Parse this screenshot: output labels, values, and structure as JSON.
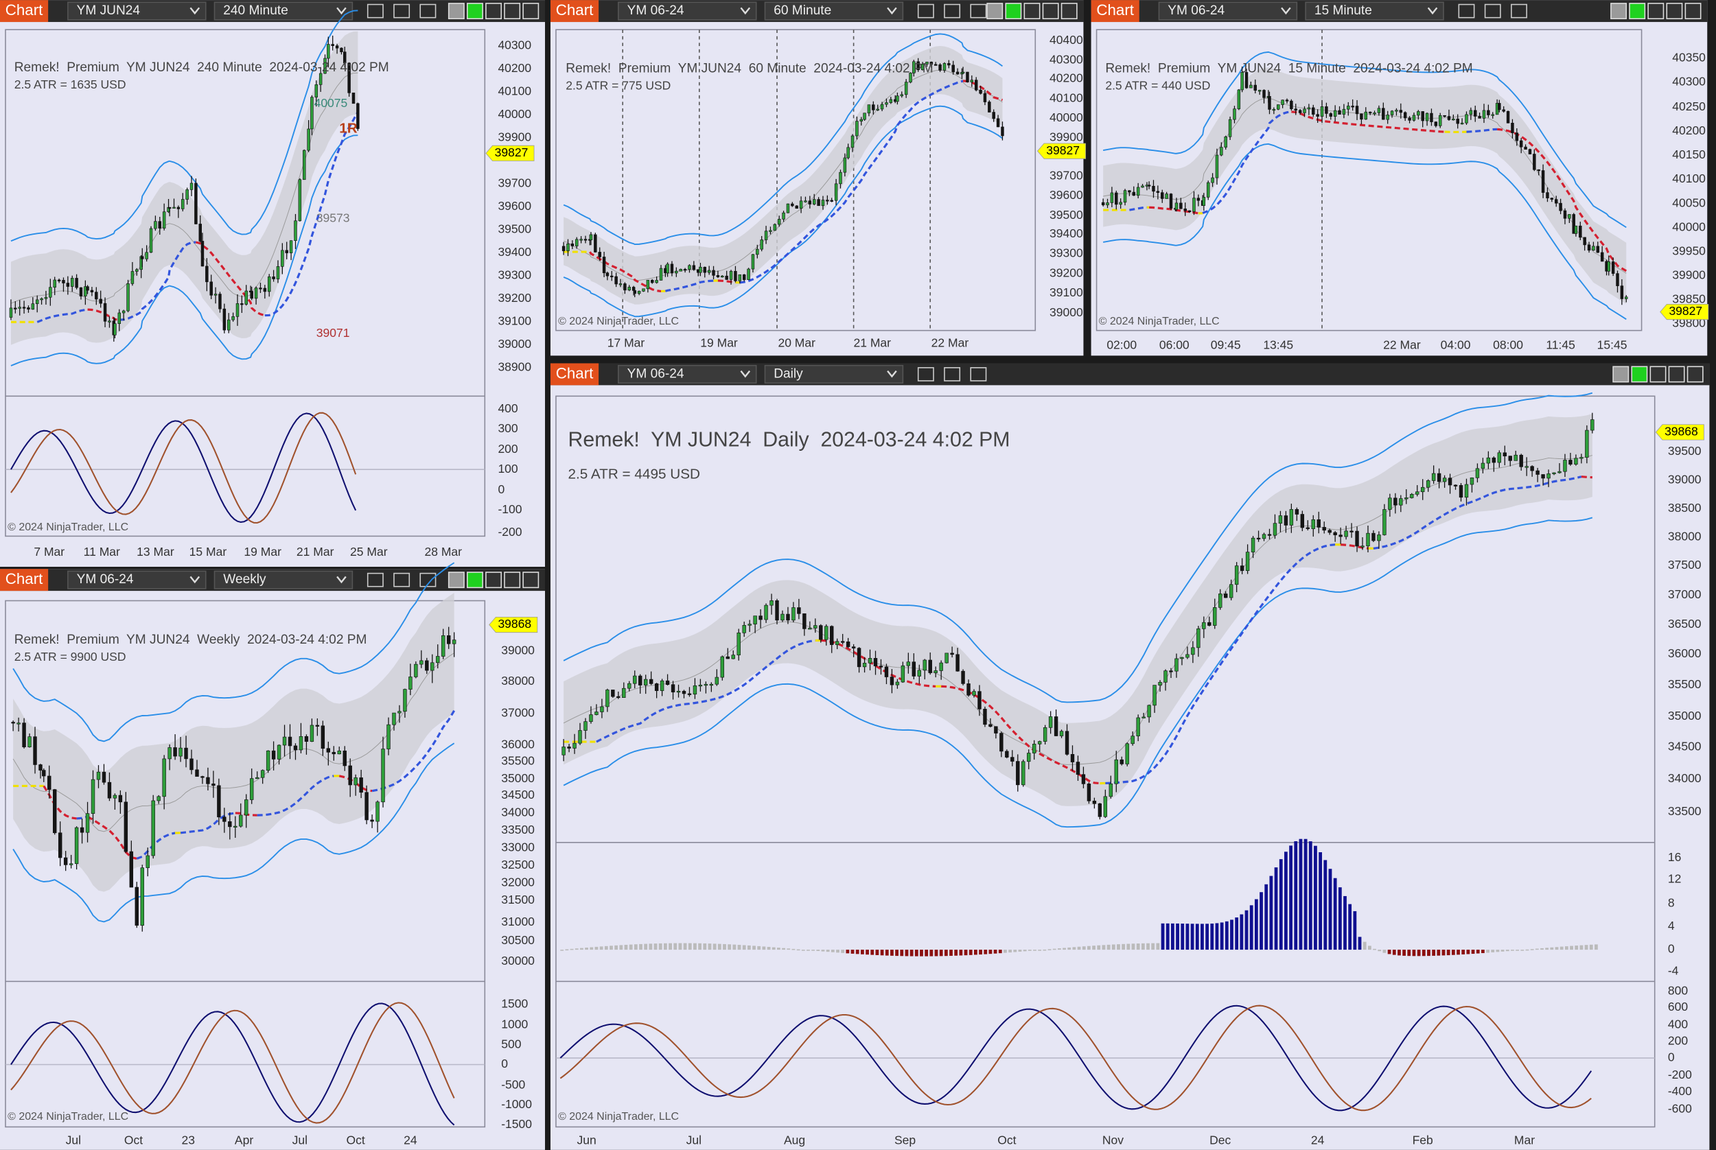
{
  "windows": [
    {
      "tab": "Chart",
      "instrument": "YM JUN24",
      "interval": "240 Minute",
      "title": "Remek!  Premium  YM JUN24  240 Minute  2024-03-24 4:02 PM",
      "atr": "2.5 ATR = 1635 USD",
      "copyright": "© 2024 NinjaTrader, LLC",
      "last_price": "39827",
      "price_axis": [
        "40300",
        "40200",
        "40100",
        "40000",
        "39900",
        "39700",
        "39600",
        "39500",
        "39400",
        "39300",
        "39200",
        "39100",
        "39000",
        "38900"
      ],
      "osc_axis": [
        "400",
        "300",
        "200",
        "100",
        "0",
        "-100",
        "-200"
      ],
      "date_axis": [
        "7 Mar",
        "11 Mar",
        "13 Mar",
        "15 Mar",
        "19 Mar",
        "21 Mar",
        "25 Mar",
        "28 Mar"
      ],
      "annotations": [
        "40075",
        "1R",
        "39573",
        "39071"
      ]
    },
    {
      "tab": "Chart",
      "instrument": "YM 06-24",
      "interval": "60 Minute",
      "title": "Remek!  Premium  YM JUN24  60 Minute  2024-03-24 4:02 PM",
      "atr": "2.5 ATR = 775 USD",
      "copyright": "© 2024 NinjaTrader, LLC",
      "last_price": "39827",
      "price_axis": [
        "40400",
        "40300",
        "40200",
        "40100",
        "40000",
        "39900",
        "39700",
        "39600",
        "39500",
        "39400",
        "39300",
        "39200",
        "39100",
        "39000"
      ],
      "date_axis": [
        "17 Mar",
        "19 Mar",
        "20 Mar",
        "21 Mar",
        "22 Mar"
      ]
    },
    {
      "tab": "Chart",
      "instrument": "YM 06-24",
      "interval": "15 Minute",
      "title": "Remek!  Premium  YM JUN24  15 Minute  2024-03-24 4:02 PM",
      "atr": "2.5 ATR = 440 USD",
      "copyright": "© 2024 NinjaTrader, LLC",
      "last_price": "39827",
      "price_axis": [
        "40350",
        "40300",
        "40250",
        "40200",
        "40150",
        "40100",
        "40050",
        "40000",
        "39950",
        "39900",
        "39850",
        "39800"
      ],
      "date_axis": [
        "02:00",
        "06:00",
        "09:45",
        "13:45",
        "22 Mar",
        "04:00",
        "08:00",
        "11:45",
        "15:45"
      ]
    },
    {
      "tab": "Chart",
      "instrument": "YM 06-24",
      "interval": "Weekly",
      "title": "Remek!  Premium  YM JUN24  Weekly  2024-03-24 4:02 PM",
      "atr": "2.5 ATR = 9900 USD",
      "copyright": "© 2024 NinjaTrader, LLC",
      "last_price": "39868",
      "price_axis": [
        "39000",
        "38000",
        "37000",
        "36000",
        "35500",
        "35000",
        "34500",
        "34000",
        "33500",
        "33000",
        "32500",
        "32000",
        "31500",
        "31000",
        "30500",
        "30000"
      ],
      "osc_axis": [
        "1500",
        "1000",
        "500",
        "0",
        "-500",
        "-1000",
        "-1500"
      ],
      "date_axis": [
        "Jul",
        "Oct",
        "23",
        "Apr",
        "Jul",
        "Oct",
        "24"
      ]
    },
    {
      "tab": "Chart",
      "instrument": "YM 06-24",
      "interval": "Daily",
      "title": "Remek!  YM JUN24  Daily  2024-03-24 4:02 PM",
      "atr": "2.5 ATR = 4495 USD",
      "copyright": "© 2024 NinjaTrader, LLC",
      "last_price": "39868",
      "price_axis": [
        "39500",
        "39000",
        "38500",
        "38000",
        "37500",
        "37000",
        "36500",
        "36000",
        "35500",
        "35000",
        "34500",
        "34000",
        "33500"
      ],
      "histogram_axis": [
        "16",
        "12",
        "8",
        "4",
        "0",
        "-4"
      ],
      "osc_axis": [
        "800",
        "600",
        "400",
        "200",
        "0",
        "-200",
        "-400",
        "-600"
      ],
      "date_axis": [
        "Jun",
        "Jul",
        "Aug",
        "Sep",
        "Oct",
        "Nov",
        "Dec",
        "24",
        "Feb",
        "Mar"
      ]
    }
  ]
}
